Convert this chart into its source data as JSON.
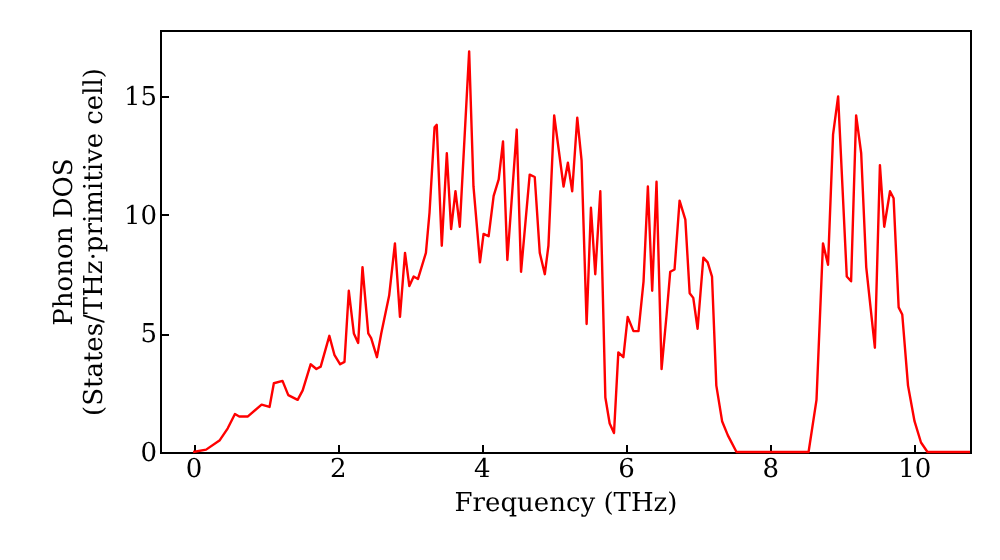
{
  "chart_data": {
    "type": "line",
    "xlabel": "Frequency (THz)",
    "ylabel": "Phonon DOS\n(States/THz·primitive cell)",
    "xlim": [
      -0.46,
      10.78
    ],
    "ylim": [
      0,
      17.8
    ],
    "xticks": [
      0,
      2,
      4,
      6,
      8,
      10
    ],
    "yticks": [
      0,
      5,
      10,
      15
    ],
    "series": [
      {
        "color": "#ff0000",
        "x": [
          0,
          0.18,
          0.37,
          0.48,
          0.58,
          0.64,
          0.76,
          0.95,
          1.06,
          1.12,
          1.24,
          1.32,
          1.45,
          1.52,
          1.63,
          1.71,
          1.77,
          1.89,
          1.96,
          2.04,
          2.1,
          2.16,
          2.23,
          2.29,
          2.35,
          2.43,
          2.47,
          2.55,
          2.61,
          2.72,
          2.8,
          2.87,
          2.94,
          3.0,
          3.06,
          3.12,
          3.23,
          3.28,
          3.35,
          3.38,
          3.45,
          3.52,
          3.58,
          3.64,
          3.7,
          3.83,
          3.89,
          3.98,
          4.03,
          4.1,
          4.17,
          4.24,
          4.3,
          4.36,
          4.49,
          4.55,
          4.67,
          4.74,
          4.81,
          4.88,
          4.93,
          5.01,
          5.14,
          5.2,
          5.26,
          5.33,
          5.39,
          5.46,
          5.52,
          5.58,
          5.65,
          5.72,
          5.78,
          5.84,
          5.9,
          5.97,
          6.03,
          6.11,
          6.18,
          6.25,
          6.31,
          6.37,
          6.43,
          6.5,
          6.57,
          6.62,
          6.68,
          6.75,
          6.83,
          6.89,
          6.94,
          7.0,
          7.08,
          7.14,
          7.2,
          7.26,
          7.34,
          7.42,
          7.54,
          8.54,
          8.65,
          8.74,
          8.81,
          8.88,
          8.95,
          9.07,
          9.13,
          9.2,
          9.27,
          9.34,
          9.46,
          9.53,
          9.59,
          9.67,
          9.72,
          9.79,
          9.84,
          9.92,
          10.01,
          10.1,
          10.19,
          10.78
        ],
        "values": [
          0,
          0.1,
          0.5,
          1.0,
          1.6,
          1.5,
          1.5,
          2.0,
          1.9,
          2.9,
          3.0,
          2.4,
          2.2,
          2.6,
          3.7,
          3.5,
          3.6,
          4.9,
          4.1,
          3.7,
          3.8,
          6.8,
          5.0,
          4.6,
          7.8,
          5.0,
          4.8,
          4.0,
          5.0,
          6.6,
          8.8,
          5.7,
          8.4,
          7.0,
          7.4,
          7.3,
          8.4,
          10.1,
          13.7,
          13.8,
          8.7,
          12.6,
          9.4,
          11.0,
          9.5,
          16.9,
          11.2,
          8.0,
          9.2,
          9.1,
          10.8,
          11.5,
          13.1,
          8.1,
          13.6,
          7.6,
          11.7,
          11.6,
          8.4,
          7.5,
          8.7,
          14.2,
          11.2,
          12.2,
          11.0,
          14.1,
          12.3,
          5.4,
          10.3,
          7.5,
          11.0,
          2.3,
          1.2,
          0.8,
          4.2,
          4.0,
          5.7,
          5.1,
          5.1,
          7.2,
          11.2,
          6.8,
          11.4,
          3.5,
          5.8,
          7.6,
          7.7,
          10.6,
          9.8,
          6.7,
          6.5,
          5.2,
          8.2,
          8.0,
          7.4,
          2.8,
          1.3,
          0.7,
          0,
          0,
          2.2,
          8.8,
          7.9,
          13.4,
          15.0,
          7.4,
          7.2,
          14.2,
          12.6,
          7.8,
          4.4,
          12.1,
          9.5,
          11.0,
          10.7,
          6.1,
          5.8,
          2.8,
          1.3,
          0.4,
          0,
          0
        ]
      }
    ]
  }
}
